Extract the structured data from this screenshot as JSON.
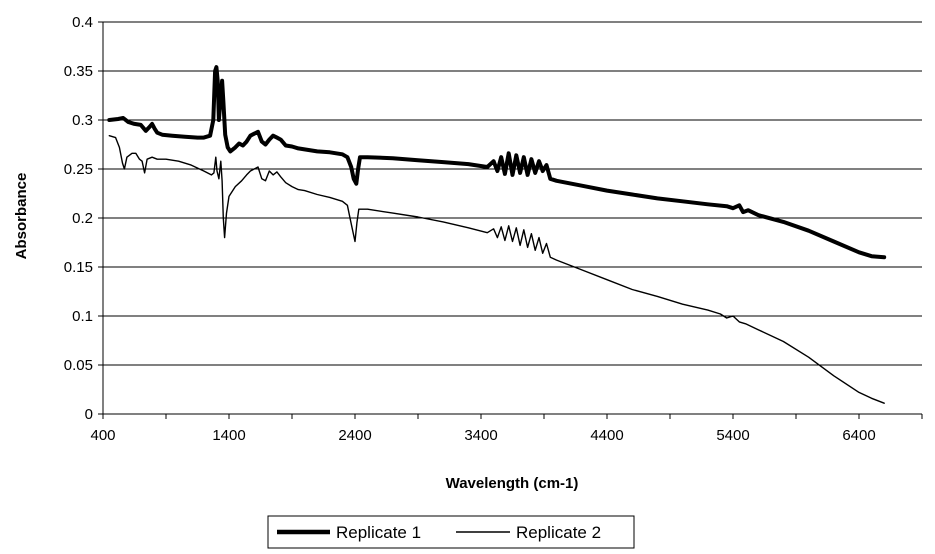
{
  "chart_data": {
    "type": "line",
    "title": "",
    "xlabel": "Wavelength (cm-1)",
    "ylabel": "Absorbance",
    "xlim": [
      400,
      6900
    ],
    "ylim": [
      0,
      0.4
    ],
    "xticks": [
      400,
      1400,
      2400,
      3400,
      4400,
      5400,
      6400
    ],
    "xtick_labels": [
      "400",
      "1400",
      "2400",
      "3400",
      "4400",
      "5400",
      "6400"
    ],
    "yticks": [
      0,
      0.05,
      0.1,
      0.15,
      0.2,
      0.25,
      0.3,
      0.35,
      0.4
    ],
    "ytick_labels": [
      "0",
      "0.05",
      "0.1",
      "0.15",
      "0.2",
      "0.25",
      "0.3",
      "0.35",
      "0.4"
    ],
    "grid": "horizontal",
    "legend_position": "bottom-center",
    "series": [
      {
        "name": "Replicate 1",
        "color": "#000000",
        "line_weight": "thick",
        "points": [
          [
            450,
            0.3
          ],
          [
            520,
            0.301
          ],
          [
            560,
            0.302
          ],
          [
            600,
            0.298
          ],
          [
            650,
            0.296
          ],
          [
            700,
            0.295
          ],
          [
            740,
            0.289
          ],
          [
            770,
            0.293
          ],
          [
            790,
            0.296
          ],
          [
            810,
            0.291
          ],
          [
            830,
            0.287
          ],
          [
            870,
            0.285
          ],
          [
            950,
            0.284
          ],
          [
            1050,
            0.283
          ],
          [
            1150,
            0.282
          ],
          [
            1200,
            0.282
          ],
          [
            1250,
            0.284
          ],
          [
            1275,
            0.3
          ],
          [
            1290,
            0.35
          ],
          [
            1300,
            0.354
          ],
          [
            1310,
            0.34
          ],
          [
            1320,
            0.3
          ],
          [
            1335,
            0.325
          ],
          [
            1345,
            0.34
          ],
          [
            1355,
            0.32
          ],
          [
            1370,
            0.285
          ],
          [
            1390,
            0.272
          ],
          [
            1410,
            0.268
          ],
          [
            1450,
            0.272
          ],
          [
            1480,
            0.276
          ],
          [
            1510,
            0.274
          ],
          [
            1540,
            0.278
          ],
          [
            1570,
            0.284
          ],
          [
            1600,
            0.286
          ],
          [
            1630,
            0.288
          ],
          [
            1660,
            0.278
          ],
          [
            1690,
            0.275
          ],
          [
            1720,
            0.28
          ],
          [
            1750,
            0.284
          ],
          [
            1780,
            0.282
          ],
          [
            1810,
            0.28
          ],
          [
            1850,
            0.274
          ],
          [
            1900,
            0.273
          ],
          [
            1950,
            0.271
          ],
          [
            2000,
            0.27
          ],
          [
            2100,
            0.268
          ],
          [
            2200,
            0.267
          ],
          [
            2300,
            0.265
          ],
          [
            2340,
            0.262
          ],
          [
            2370,
            0.252
          ],
          [
            2390,
            0.24
          ],
          [
            2410,
            0.235
          ],
          [
            2425,
            0.25
          ],
          [
            2440,
            0.262
          ],
          [
            2500,
            0.262
          ],
          [
            2700,
            0.261
          ],
          [
            2900,
            0.259
          ],
          [
            3100,
            0.257
          ],
          [
            3300,
            0.255
          ],
          [
            3450,
            0.252
          ],
          [
            3500,
            0.258
          ],
          [
            3530,
            0.248
          ],
          [
            3560,
            0.262
          ],
          [
            3590,
            0.245
          ],
          [
            3620,
            0.266
          ],
          [
            3650,
            0.244
          ],
          [
            3680,
            0.264
          ],
          [
            3710,
            0.246
          ],
          [
            3740,
            0.262
          ],
          [
            3770,
            0.244
          ],
          [
            3800,
            0.26
          ],
          [
            3830,
            0.246
          ],
          [
            3860,
            0.258
          ],
          [
            3890,
            0.248
          ],
          [
            3920,
            0.254
          ],
          [
            3950,
            0.24
          ],
          [
            4000,
            0.238
          ],
          [
            4200,
            0.233
          ],
          [
            4400,
            0.228
          ],
          [
            4600,
            0.224
          ],
          [
            4800,
            0.22
          ],
          [
            5000,
            0.217
          ],
          [
            5200,
            0.214
          ],
          [
            5350,
            0.212
          ],
          [
            5400,
            0.21
          ],
          [
            5450,
            0.213
          ],
          [
            5480,
            0.206
          ],
          [
            5520,
            0.208
          ],
          [
            5600,
            0.203
          ],
          [
            5800,
            0.196
          ],
          [
            6000,
            0.187
          ],
          [
            6200,
            0.176
          ],
          [
            6400,
            0.165
          ],
          [
            6500,
            0.161
          ],
          [
            6600,
            0.16
          ]
        ]
      },
      {
        "name": "Replicate 2",
        "color": "#000000",
        "line_weight": "thin",
        "points": [
          [
            450,
            0.284
          ],
          [
            500,
            0.282
          ],
          [
            530,
            0.272
          ],
          [
            555,
            0.256
          ],
          [
            570,
            0.25
          ],
          [
            590,
            0.262
          ],
          [
            630,
            0.266
          ],
          [
            660,
            0.266
          ],
          [
            690,
            0.26
          ],
          [
            710,
            0.258
          ],
          [
            730,
            0.246
          ],
          [
            750,
            0.26
          ],
          [
            790,
            0.262
          ],
          [
            830,
            0.26
          ],
          [
            900,
            0.26
          ],
          [
            1000,
            0.258
          ],
          [
            1100,
            0.254
          ],
          [
            1200,
            0.248
          ],
          [
            1260,
            0.244
          ],
          [
            1280,
            0.246
          ],
          [
            1295,
            0.262
          ],
          [
            1305,
            0.248
          ],
          [
            1320,
            0.24
          ],
          [
            1335,
            0.258
          ],
          [
            1345,
            0.238
          ],
          [
            1355,
            0.2
          ],
          [
            1365,
            0.18
          ],
          [
            1380,
            0.205
          ],
          [
            1400,
            0.222
          ],
          [
            1450,
            0.232
          ],
          [
            1500,
            0.238
          ],
          [
            1540,
            0.244
          ],
          [
            1570,
            0.248
          ],
          [
            1600,
            0.25
          ],
          [
            1630,
            0.252
          ],
          [
            1660,
            0.24
          ],
          [
            1690,
            0.238
          ],
          [
            1720,
            0.248
          ],
          [
            1750,
            0.244
          ],
          [
            1780,
            0.247
          ],
          [
            1810,
            0.242
          ],
          [
            1850,
            0.236
          ],
          [
            1900,
            0.232
          ],
          [
            1950,
            0.229
          ],
          [
            2000,
            0.228
          ],
          [
            2100,
            0.224
          ],
          [
            2200,
            0.221
          ],
          [
            2300,
            0.217
          ],
          [
            2340,
            0.213
          ],
          [
            2360,
            0.2
          ],
          [
            2380,
            0.188
          ],
          [
            2400,
            0.176
          ],
          [
            2415,
            0.195
          ],
          [
            2430,
            0.209
          ],
          [
            2500,
            0.209
          ],
          [
            2700,
            0.205
          ],
          [
            2900,
            0.201
          ],
          [
            3100,
            0.196
          ],
          [
            3300,
            0.19
          ],
          [
            3450,
            0.185
          ],
          [
            3500,
            0.189
          ],
          [
            3530,
            0.18
          ],
          [
            3560,
            0.191
          ],
          [
            3590,
            0.177
          ],
          [
            3620,
            0.192
          ],
          [
            3650,
            0.176
          ],
          [
            3680,
            0.19
          ],
          [
            3710,
            0.172
          ],
          [
            3740,
            0.188
          ],
          [
            3770,
            0.17
          ],
          [
            3800,
            0.184
          ],
          [
            3830,
            0.167
          ],
          [
            3860,
            0.18
          ],
          [
            3890,
            0.164
          ],
          [
            3920,
            0.174
          ],
          [
            3950,
            0.16
          ],
          [
            4000,
            0.157
          ],
          [
            4200,
            0.147
          ],
          [
            4400,
            0.137
          ],
          [
            4600,
            0.127
          ],
          [
            4800,
            0.12
          ],
          [
            5000,
            0.112
          ],
          [
            5200,
            0.106
          ],
          [
            5300,
            0.102
          ],
          [
            5350,
            0.098
          ],
          [
            5400,
            0.1
          ],
          [
            5450,
            0.094
          ],
          [
            5500,
            0.092
          ],
          [
            5600,
            0.086
          ],
          [
            5800,
            0.074
          ],
          [
            6000,
            0.058
          ],
          [
            6200,
            0.039
          ],
          [
            6400,
            0.022
          ],
          [
            6500,
            0.016
          ],
          [
            6600,
            0.011
          ]
        ]
      }
    ]
  }
}
